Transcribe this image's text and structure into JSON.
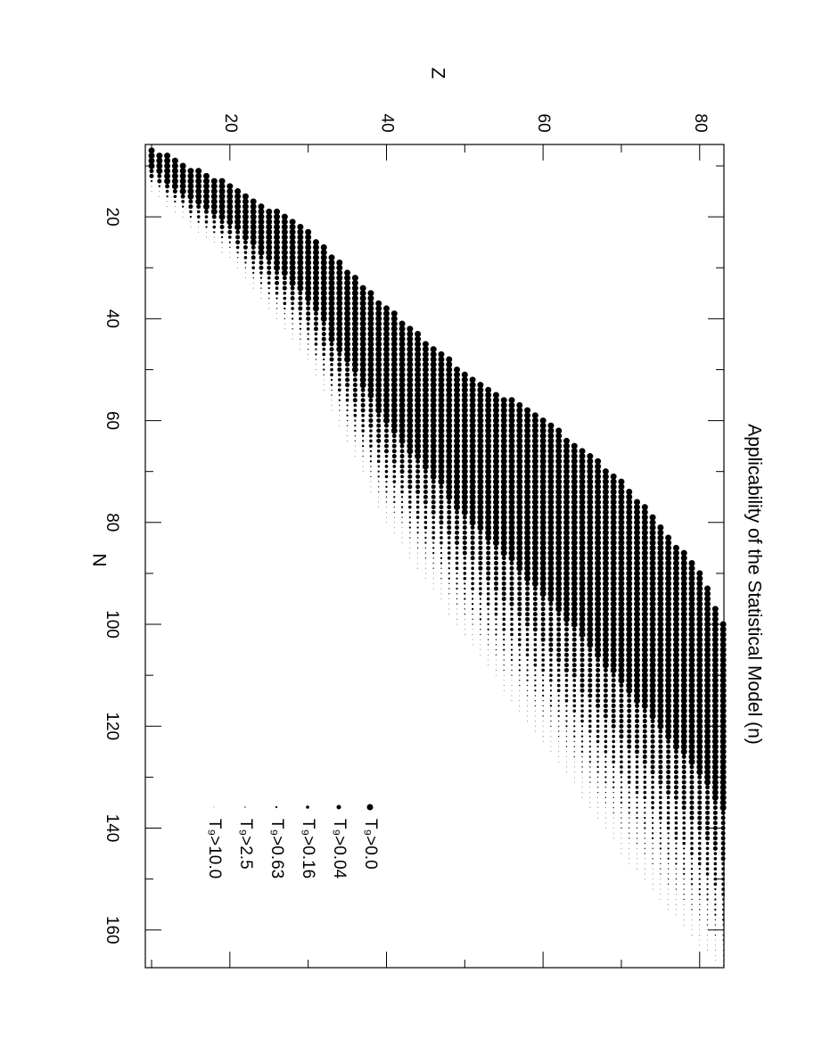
{
  "chart_data": {
    "type": "dotband",
    "title": "Applicability of the Statistical Model (n)",
    "xlabel": "N",
    "ylabel": "Z",
    "xlim": [
      5.8,
      167.4
    ],
    "ylim": [
      9.2,
      83.1
    ],
    "xticks": [
      20,
      40,
      60,
      80,
      100,
      120,
      140,
      160
    ],
    "xminorticks": [
      10,
      30,
      50,
      70,
      90,
      110,
      130,
      150
    ],
    "yticks": [
      20,
      40,
      60,
      80
    ],
    "yminorticks": [
      10,
      30,
      50,
      70
    ],
    "color": "#000000",
    "series": [
      {
        "name": "T₉>0.0"
      },
      {
        "name": "T₉>0.04"
      },
      {
        "name": "T₉>0.16"
      },
      {
        "name": "T₉>0.63"
      },
      {
        "name": "T₉>2.5"
      },
      {
        "name": "T₉>10.0"
      }
    ],
    "rows": {
      "Z": [
        10,
        11,
        12,
        13,
        14,
        15,
        16,
        17,
        18,
        19,
        20,
        21,
        22,
        23,
        24,
        25,
        26,
        27,
        28,
        29,
        30,
        31,
        32,
        33,
        34,
        35,
        36,
        37,
        38,
        39,
        40,
        41,
        42,
        43,
        44,
        45,
        46,
        47,
        48,
        49,
        50,
        51,
        52,
        53,
        54,
        55,
        56,
        57,
        58,
        59,
        60,
        61,
        62,
        63,
        64,
        65,
        66,
        67,
        68,
        69,
        70,
        71,
        72,
        73,
        74,
        75,
        76,
        77,
        78,
        79,
        80,
        81,
        82,
        83
      ],
      "N_edges": [
        [
          7,
          11,
          13,
          13,
          14,
          14,
          15
        ],
        [
          8,
          12,
          14,
          14,
          15,
          15,
          16
        ],
        [
          8,
          14,
          15,
          16,
          17,
          17,
          18
        ],
        [
          9,
          15,
          16,
          17,
          18,
          18,
          19
        ],
        [
          10,
          16,
          17,
          18,
          19,
          19,
          20
        ],
        [
          11,
          17,
          19,
          20,
          21,
          21,
          22
        ],
        [
          11,
          18,
          19,
          21,
          22,
          22,
          23
        ],
        [
          12,
          19,
          20,
          22,
          23,
          23,
          24
        ],
        [
          13,
          20,
          21,
          23,
          24,
          24,
          25
        ],
        [
          13,
          21,
          23,
          24,
          25,
          26,
          27
        ],
        [
          14,
          22,
          24,
          25,
          26,
          27,
          28
        ],
        [
          15,
          23,
          26,
          27,
          28,
          29,
          30
        ],
        [
          16,
          25,
          27,
          29,
          30,
          31,
          32
        ],
        [
          17,
          26,
          29,
          31,
          32,
          33,
          34
        ],
        [
          18,
          28,
          31,
          32,
          34,
          35,
          36
        ],
        [
          19,
          29,
          32,
          34,
          36,
          37,
          38
        ],
        [
          19,
          31,
          34,
          36,
          37,
          39,
          40
        ],
        [
          20,
          32,
          35,
          38,
          39,
          41,
          42
        ],
        [
          21,
          34,
          37,
          39,
          41,
          43,
          44
        ],
        [
          22,
          35,
          39,
          41,
          43,
          45,
          46
        ],
        [
          23,
          37,
          41,
          43,
          45,
          47,
          48
        ],
        [
          25,
          39,
          43,
          46,
          48,
          49,
          51
        ],
        [
          26,
          41,
          46,
          48,
          51,
          52,
          54
        ],
        [
          28,
          45,
          49,
          52,
          54,
          56,
          58
        ],
        [
          29,
          47,
          51,
          55,
          57,
          59,
          61
        ],
        [
          31,
          49,
          54,
          57,
          60,
          62,
          64
        ],
        [
          32,
          51,
          57,
          60,
          63,
          65,
          67
        ],
        [
          34,
          54,
          59,
          63,
          66,
          68,
          70
        ],
        [
          35,
          56,
          62,
          66,
          69,
          72,
          74
        ],
        [
          37,
          59,
          65,
          69,
          72,
          75,
          77
        ],
        [
          38,
          61,
          67,
          72,
          75,
          77,
          80
        ],
        [
          39,
          63,
          69,
          73,
          77,
          79,
          82
        ],
        [
          41,
          65,
          71,
          75,
          79,
          81,
          84
        ],
        [
          42,
          67,
          74,
          78,
          82,
          84,
          87
        ],
        [
          43,
          68,
          75,
          80,
          83,
          86,
          89
        ],
        [
          45,
          70,
          77,
          82,
          85,
          88,
          91
        ],
        [
          46,
          72,
          79,
          84,
          87,
          90,
          93
        ],
        [
          47,
          73,
          81,
          85,
          89,
          92,
          95
        ],
        [
          48,
          76,
          83,
          88,
          92,
          95,
          98
        ],
        [
          50,
          78,
          85,
          90,
          94,
          97,
          100
        ],
        [
          51,
          79,
          87,
          92,
          96,
          99,
          102
        ],
        [
          52,
          81,
          88,
          94,
          98,
          101,
          104
        ],
        [
          53,
          82,
          90,
          95,
          100,
          103,
          106
        ],
        [
          54,
          84,
          92,
          97,
          102,
          105,
          108
        ],
        [
          55,
          85,
          94,
          99,
          103,
          107,
          110
        ],
        [
          56,
          87,
          96,
          102,
          106,
          110,
          113
        ],
        [
          56,
          88,
          97,
          103,
          108,
          111,
          115
        ],
        [
          57,
          90,
          99,
          105,
          110,
          113,
          117
        ],
        [
          58,
          92,
          101,
          107,
          112,
          115,
          119
        ],
        [
          59,
          93,
          102,
          109,
          114,
          117,
          121
        ],
        [
          60,
          95,
          104,
          110,
          115,
          119,
          123
        ],
        [
          61,
          96,
          106,
          112,
          117,
          121,
          125
        ],
        [
          62,
          98,
          108,
          114,
          119,
          123,
          127
        ],
        [
          64,
          100,
          110,
          116,
          121,
          125,
          129
        ],
        [
          65,
          101,
          111,
          118,
          123,
          127,
          131
        ],
        [
          66,
          103,
          114,
          120,
          126,
          130,
          134
        ],
        [
          67,
          105,
          115,
          122,
          128,
          132,
          136
        ],
        [
          68,
          107,
          117,
          124,
          130,
          134,
          138
        ],
        [
          70,
          109,
          119,
          126,
          132,
          136,
          140
        ],
        [
          71,
          110,
          121,
          128,
          133,
          138,
          142
        ],
        [
          72,
          112,
          123,
          130,
          136,
          141,
          145
        ],
        [
          74,
          114,
          125,
          132,
          138,
          143,
          147
        ],
        [
          76,
          116,
          126,
          134,
          139,
          144,
          148
        ],
        [
          77,
          117,
          128,
          135,
          141,
          146,
          150
        ],
        [
          79,
          119,
          130,
          137,
          143,
          148,
          152
        ],
        [
          81,
          121,
          132,
          139,
          145,
          150,
          154
        ],
        [
          83,
          123,
          134,
          141,
          147,
          152,
          156
        ],
        [
          85,
          125,
          135,
          143,
          148,
          153,
          157
        ],
        [
          86,
          126,
          137,
          144,
          150,
          155,
          159
        ],
        [
          88,
          128,
          139,
          146,
          152,
          157,
          161
        ],
        [
          90,
          130,
          141,
          148,
          154,
          159,
          163
        ],
        [
          93,
          132,
          143,
          150,
          155,
          160,
          164
        ],
        [
          97,
          135,
          145,
          152,
          158,
          162,
          166
        ],
        [
          100,
          137,
          147,
          154,
          159,
          163,
          167
        ]
      ]
    }
  }
}
